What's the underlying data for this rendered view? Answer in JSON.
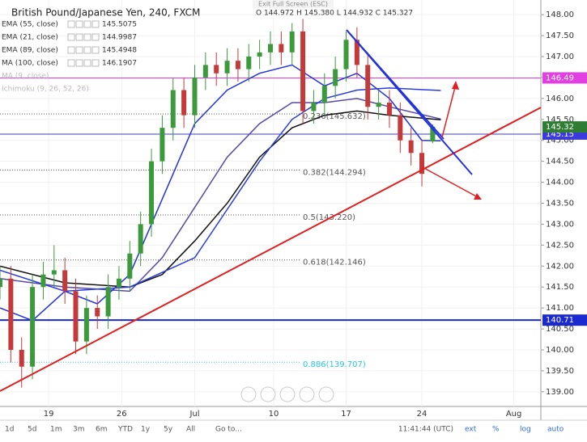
{
  "chart_data": {
    "type": "candlestick",
    "title": "British Pound/Japanese Yen, 240, FXCM",
    "ohlc_text": "O 144.972 H 145.380 L 144.932 C 145.327",
    "exit_text": "Exit Full Screen (ESC)",
    "xlim": [
      0,
      100
    ],
    "xticks": [
      {
        "value": 9,
        "label": "19"
      },
      {
        "value": 22.5,
        "label": "26"
      },
      {
        "value": 36,
        "label": "Jul"
      },
      {
        "value": 50.6,
        "label": "10"
      },
      {
        "value": 64,
        "label": "17"
      },
      {
        "value": 78,
        "label": "24"
      },
      {
        "value": 95,
        "label": "Aug"
      }
    ],
    "ylim": [
      138.65,
      148.35
    ],
    "yticks": [
      {
        "value": 139,
        "label": "139.00"
      },
      {
        "value": 139.5,
        "label": "139.50"
      },
      {
        "value": 140,
        "label": "140.00"
      },
      {
        "value": 140.5,
        "label": "140.50"
      },
      {
        "value": 141,
        "label": "141.00"
      },
      {
        "value": 141.5,
        "label": "141.50"
      },
      {
        "value": 142,
        "label": "142.00"
      },
      {
        "value": 142.5,
        "label": "142.50"
      },
      {
        "value": 143,
        "label": "143.00"
      },
      {
        "value": 143.5,
        "label": "143.50"
      },
      {
        "value": 144,
        "label": "144.00"
      },
      {
        "value": 144.5,
        "label": "144.50"
      },
      {
        "value": 145,
        "label": "145.00"
      },
      {
        "value": 145.5,
        "label": "145.50"
      },
      {
        "value": 146,
        "label": "146.00"
      },
      {
        "value": 146.5,
        "label": "146.50"
      },
      {
        "value": 147,
        "label": "147.00"
      },
      {
        "value": 147.5,
        "label": "147.50"
      },
      {
        "value": 148,
        "label": "148.00"
      }
    ],
    "up_color": "#3c9a3c",
    "down_color": "#c43a3a",
    "x": [
      0,
      2,
      4,
      6,
      8,
      10,
      12,
      14,
      16,
      18,
      20,
      22,
      24,
      26,
      28,
      30,
      32,
      34,
      36,
      38,
      40,
      42,
      44,
      46,
      48,
      50,
      52,
      54,
      56,
      58,
      60,
      62,
      64,
      66,
      68,
      70,
      72,
      74,
      76,
      78,
      80
    ],
    "open": [
      141.5,
      141.7,
      140.0,
      139.6,
      141.5,
      141.8,
      141.9,
      141.4,
      140.2,
      141.0,
      140.8,
      141.5,
      141.7,
      142.3,
      143.0,
      144.5,
      145.3,
      146.2,
      145.6,
      146.5,
      146.8,
      146.6,
      146.9,
      146.7,
      147.0,
      147.1,
      147.3,
      147.1,
      147.6,
      145.7,
      145.9,
      146.3,
      146.7,
      147.4,
      146.8,
      145.8,
      145.9,
      145.6,
      145.0,
      144.7,
      144.972
    ],
    "high": [
      142.0,
      142.0,
      140.3,
      141.8,
      142.1,
      142.5,
      142.2,
      141.7,
      141.3,
      141.3,
      141.8,
      142.0,
      142.6,
      143.3,
      144.8,
      145.6,
      146.5,
      146.5,
      146.8,
      147.1,
      147.1,
      147.2,
      147.2,
      147.3,
      147.4,
      147.6,
      147.6,
      147.8,
      147.9,
      146.2,
      146.6,
      147.0,
      147.6,
      147.7,
      147.1,
      146.2,
      146.2,
      145.9,
      145.3,
      145.0,
      145.38
    ],
    "low": [
      141.2,
      139.7,
      139.1,
      139.3,
      141.2,
      141.5,
      141.1,
      139.9,
      139.9,
      140.5,
      140.5,
      141.2,
      141.4,
      142.0,
      142.7,
      144.2,
      145.0,
      145.3,
      145.3,
      146.2,
      146.3,
      146.3,
      146.4,
      146.4,
      146.7,
      146.8,
      146.8,
      146.8,
      145.4,
      145.4,
      145.6,
      146.0,
      146.4,
      146.5,
      145.5,
      145.5,
      145.3,
      144.7,
      144.4,
      143.9,
      144.932
    ],
    "close": [
      141.7,
      140.0,
      139.6,
      141.5,
      141.8,
      141.9,
      141.4,
      140.2,
      141.0,
      140.8,
      141.5,
      141.7,
      142.3,
      143.0,
      144.5,
      145.3,
      146.2,
      145.6,
      146.5,
      146.8,
      146.6,
      146.9,
      146.7,
      147.0,
      147.1,
      147.3,
      147.1,
      147.6,
      145.7,
      145.9,
      146.3,
      146.7,
      147.4,
      146.8,
      145.8,
      145.9,
      145.6,
      145.0,
      144.7,
      144.2,
      145.327
    ],
    "series": [
      {
        "name": "EMA (55, close)",
        "value_label": "145.5075",
        "color": "#5548a8",
        "x": [
          0,
          12,
          24,
          30,
          36,
          42,
          48,
          54,
          60,
          66,
          72,
          81.5
        ],
        "values": [
          141.7,
          141.5,
          141.4,
          142.2,
          143.4,
          144.6,
          145.4,
          145.9,
          145.9,
          146.0,
          145.8,
          145.51
        ]
      },
      {
        "name": "EMA (21, close)",
        "value_label": "144.9987",
        "color": "#2233dd",
        "x": [
          0,
          6,
          12,
          18,
          24,
          30,
          36,
          42,
          48,
          54,
          60,
          66,
          72,
          78,
          81.5
        ],
        "values": [
          141.0,
          140.7,
          141.4,
          141.1,
          141.8,
          143.6,
          145.4,
          146.2,
          146.6,
          146.8,
          146.3,
          146.6,
          146.0,
          145.0,
          144.99
        ]
      },
      {
        "name": "EMA (89, close)",
        "value_label": "145.4948",
        "color": "#111111",
        "x": [
          0,
          12,
          24,
          30,
          36,
          42,
          48,
          54,
          60,
          66,
          72,
          81.5
        ],
        "values": [
          142.0,
          141.6,
          141.5,
          141.8,
          142.6,
          143.5,
          144.6,
          145.3,
          145.6,
          145.7,
          145.6,
          145.49
        ]
      },
      {
        "name": "MA (100, close)",
        "value_label": "146.1907",
        "color": "#2a3cdc",
        "x": [
          0,
          12,
          24,
          36,
          48,
          54,
          60,
          66,
          72,
          81.5
        ],
        "values": [
          141.9,
          141.4,
          141.5,
          142.2,
          144.5,
          145.5,
          146.0,
          146.2,
          146.25,
          146.19
        ]
      }
    ],
    "muted_legend": [
      "MA (9, close)",
      "Ichimoku (9, 26, 52, 26)"
    ],
    "fib_levels": [
      {
        "value": 145.632,
        "label": "0.236(145.632)",
        "color": "#555555"
      },
      {
        "value": 144.294,
        "label": "0.382(144.294)",
        "color": "#555555"
      },
      {
        "value": 143.22,
        "label": "0.5(143.220)",
        "color": "#555555"
      },
      {
        "value": 142.146,
        "label": "0.618(142.146)",
        "color": "#555555"
      },
      {
        "value": 139.707,
        "label": "0.886(139.707)",
        "color": "#22c8e8"
      }
    ],
    "hlines": [
      {
        "value": 146.49,
        "label": "146.49",
        "color": "#e040e0"
      },
      {
        "value": 145.15,
        "label": "145.15",
        "color": "#3a3ae0"
      },
      {
        "value": 140.71,
        "label": "140.71",
        "color": "#1a2ad0"
      }
    ],
    "last_price": 145.32,
    "last_color": "#2e7d32",
    "toolbar": [
      "1d",
      "5d",
      "1m",
      "3m",
      "6m",
      "YTD",
      "1y",
      "5y",
      "All",
      "Go to..."
    ],
    "clock": "11:41:44 (UTC)",
    "scale_buttons": [
      "ext",
      "%",
      "log",
      "auto"
    ]
  }
}
